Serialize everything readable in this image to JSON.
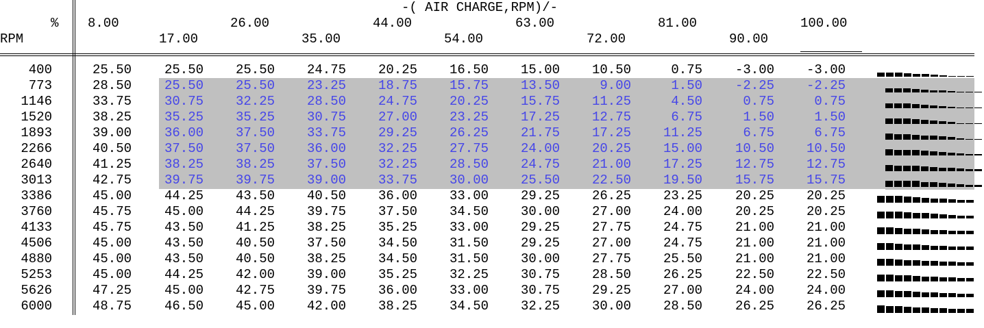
{
  "header": {
    "title": "-( AIR CHARGE,RPM)/-",
    "col_unit": "%",
    "row_unit": "RPM",
    "columns_row1": [
      "8.00",
      "26.00",
      "44.00",
      "63.00",
      "81.00",
      "100.00"
    ],
    "columns_row2": [
      "17.00",
      "35.00",
      "54.00",
      "72.00",
      "90.00"
    ]
  },
  "table": {
    "rpm": [
      "400",
      "773",
      "1146",
      "1520",
      "1893",
      "2266",
      "2640",
      "3013",
      "3386",
      "3760",
      "4133",
      "4506",
      "4880",
      "5253",
      "5626",
      "6000"
    ],
    "selected_rows": [
      1,
      2,
      3,
      4,
      5,
      6,
      7
    ],
    "selected_cols": [
      1,
      2,
      3,
      4,
      5,
      6,
      7,
      8,
      9,
      10
    ],
    "rows": [
      [
        "25.50",
        "25.50",
        "25.50",
        "24.75",
        "20.25",
        "16.50",
        "15.00",
        "10.50",
        "0.75",
        "-3.00",
        "-3.00"
      ],
      [
        "28.50",
        "25.50",
        "25.50",
        "23.25",
        "18.75",
        "15.75",
        "13.50",
        "9.00",
        "1.50",
        "-2.25",
        "-2.25"
      ],
      [
        "33.75",
        "30.75",
        "32.25",
        "28.50",
        "24.75",
        "20.25",
        "15.75",
        "11.25",
        "4.50",
        "0.75",
        "0.75"
      ],
      [
        "38.25",
        "35.25",
        "35.25",
        "30.75",
        "27.00",
        "23.25",
        "17.25",
        "12.75",
        "6.75",
        "1.50",
        "1.50"
      ],
      [
        "39.00",
        "36.00",
        "37.50",
        "33.75",
        "29.25",
        "26.25",
        "21.75",
        "17.25",
        "11.25",
        "6.75",
        "6.75"
      ],
      [
        "40.50",
        "37.50",
        "37.50",
        "36.00",
        "32.25",
        "27.75",
        "24.00",
        "20.25",
        "15.00",
        "10.50",
        "10.50"
      ],
      [
        "41.25",
        "38.25",
        "38.25",
        "37.50",
        "32.25",
        "28.50",
        "24.75",
        "21.00",
        "17.25",
        "12.75",
        "12.75"
      ],
      [
        "42.75",
        "39.75",
        "39.75",
        "39.00",
        "33.75",
        "30.00",
        "25.50",
        "22.50",
        "19.50",
        "15.75",
        "15.75"
      ],
      [
        "45.00",
        "44.25",
        "43.50",
        "40.50",
        "36.00",
        "33.00",
        "29.25",
        "26.25",
        "23.25",
        "20.25",
        "20.25"
      ],
      [
        "45.75",
        "45.00",
        "44.25",
        "39.75",
        "37.50",
        "34.50",
        "30.00",
        "27.00",
        "24.00",
        "20.25",
        "20.25"
      ],
      [
        "45.75",
        "43.50",
        "41.25",
        "38.25",
        "35.25",
        "33.00",
        "29.25",
        "27.75",
        "24.75",
        "21.00",
        "21.00"
      ],
      [
        "45.00",
        "43.50",
        "40.50",
        "37.50",
        "34.50",
        "31.50",
        "29.25",
        "27.00",
        "24.75",
        "21.00",
        "21.00"
      ],
      [
        "45.00",
        "43.50",
        "40.50",
        "38.25",
        "34.50",
        "31.50",
        "30.00",
        "27.75",
        "25.50",
        "21.00",
        "21.00"
      ],
      [
        "45.00",
        "44.25",
        "42.00",
        "39.00",
        "35.25",
        "32.25",
        "30.75",
        "28.50",
        "26.25",
        "22.50",
        "22.50"
      ],
      [
        "47.25",
        "45.00",
        "42.75",
        "39.75",
        "36.00",
        "33.00",
        "30.75",
        "29.25",
        "27.00",
        "24.00",
        "24.00"
      ],
      [
        "48.75",
        "46.50",
        "45.00",
        "42.00",
        "38.25",
        "34.50",
        "32.25",
        "30.00",
        "28.50",
        "26.25",
        "26.25"
      ]
    ]
  },
  "colors": {
    "selection_bg": "#c0c0c0",
    "selected_text": "#4646e8",
    "text": "#000000"
  }
}
